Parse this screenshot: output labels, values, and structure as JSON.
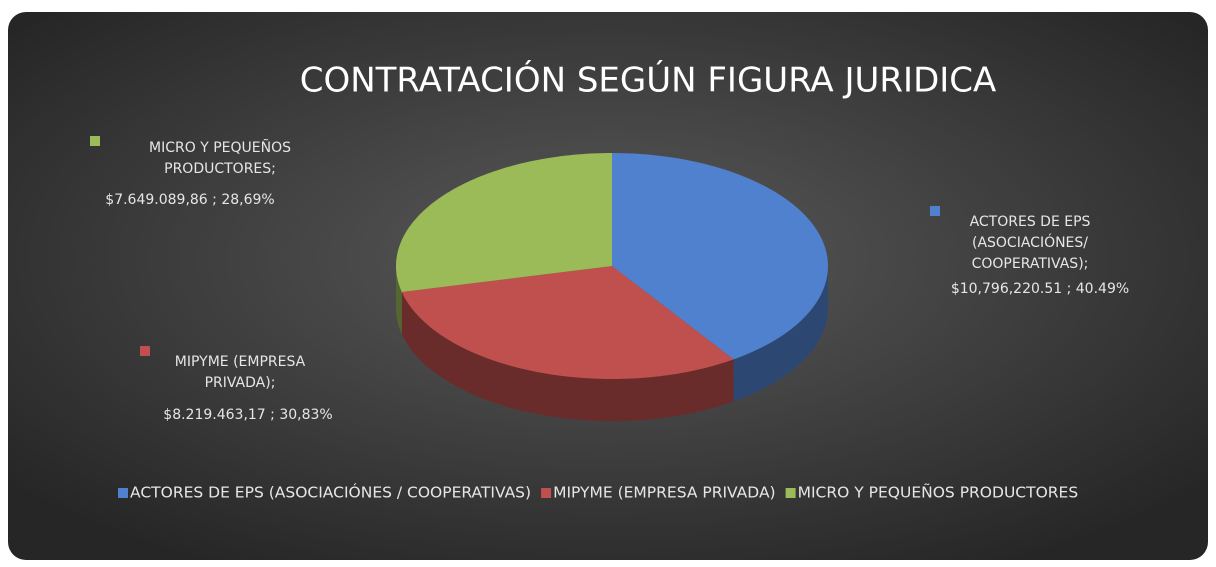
{
  "chart_data": {
    "type": "pie3d",
    "title": "CONTRATACIÓN SEGÚN FIGURA JURIDICA",
    "categories": [
      "ACTORES DE EPS (ASOCIACIÓNES / COOPERATIVAS)",
      "MIPYME (EMPRESA PRIVADA)",
      "MICRO Y PEQUEÑOS PRODUCTORES"
    ],
    "values": [
      40.49,
      30.83,
      28.69
    ],
    "value_labels": [
      "$10,796,220.51 ; 40.49%",
      "$8.219.463,17 ; 30,83%",
      "$7.649.089,86 ; 28,69%"
    ],
    "label_names": [
      [
        "ACTORES DE EPS",
        "(ASOCIACIÓNES/",
        "COOPERATIVAS);"
      ],
      [
        "MIPYME (EMPRESA",
        "PRIVADA);"
      ],
      [
        "MICRO Y PEQUEÑOS",
        "PRODUCTORES;"
      ]
    ],
    "colors": [
      "#4f81cf",
      "#c0504d",
      "#9bbb59"
    ],
    "legend": "bottom"
  }
}
